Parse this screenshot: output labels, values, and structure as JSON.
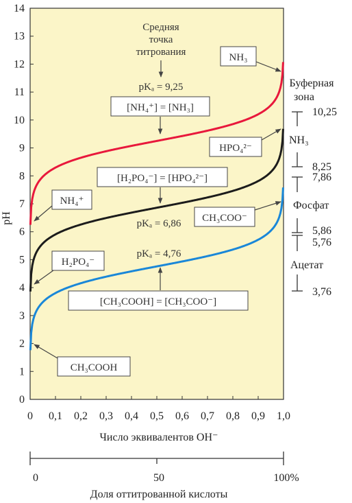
{
  "chart_data": {
    "type": "line",
    "ylabel": "pH",
    "xlabel": "Число эквивалентов OH⁻",
    "xlabel2": "Доля оттитрованной кислоты",
    "xlim": [
      0,
      1
    ],
    "ylim": [
      0,
      14
    ],
    "x_ticks": [
      "0",
      "0,1",
      "0,2",
      "0,3",
      "0,4",
      "0,5",
      "0,6",
      "0,7",
      "0,8",
      "0,9",
      "1,0"
    ],
    "y_ticks": [
      "0",
      "1",
      "2",
      "3",
      "4",
      "5",
      "6",
      "7",
      "8",
      "9",
      "10",
      "11",
      "12",
      "13",
      "14"
    ],
    "x2_ticks": [
      "0",
      "50",
      "100%"
    ],
    "series": [
      {
        "pKa": 9.25,
        "color": "#e8183c"
      },
      {
        "pKa": 6.86,
        "color": "#1c1c1c"
      },
      {
        "pKa": 4.76,
        "color": "#1a87d8"
      }
    ],
    "annotations": {
      "midpoint": [
        "Средняя",
        "точка",
        "титрования"
      ],
      "pka_nh4": "pKₐ = 9,25",
      "eq_nh4": "[NH₄⁺] = [NH₃]",
      "nh3": "NH₃",
      "hpo4": "HPO₄²⁻",
      "eq_phosphate": "[H₂PO₄⁻] = [HPO₄²⁻]",
      "nh4": "NH₄⁺",
      "pka_phosphate": "pKₐ = 6,86",
      "ch3coo": "CH₃COO⁻",
      "h2po4": "H₂PO₄⁻",
      "pka_acetate": "pKₐ = 4,76",
      "eq_acetate": "[CH₃COOH] = [CH₃COO⁻]",
      "ch3cooh": "CH₃COOH"
    },
    "buffer_zones": {
      "title": [
        "Буферная",
        "зона"
      ],
      "nh3": {
        "label": "NH₃",
        "upper": "10,25",
        "lower": "8,25"
      },
      "phosphate": {
        "label": "Фосфат",
        "upper": "7,86",
        "lower": "5,86"
      },
      "acetate": {
        "label": "Ацетат",
        "upper": "5,76",
        "lower": "3,76"
      }
    }
  }
}
